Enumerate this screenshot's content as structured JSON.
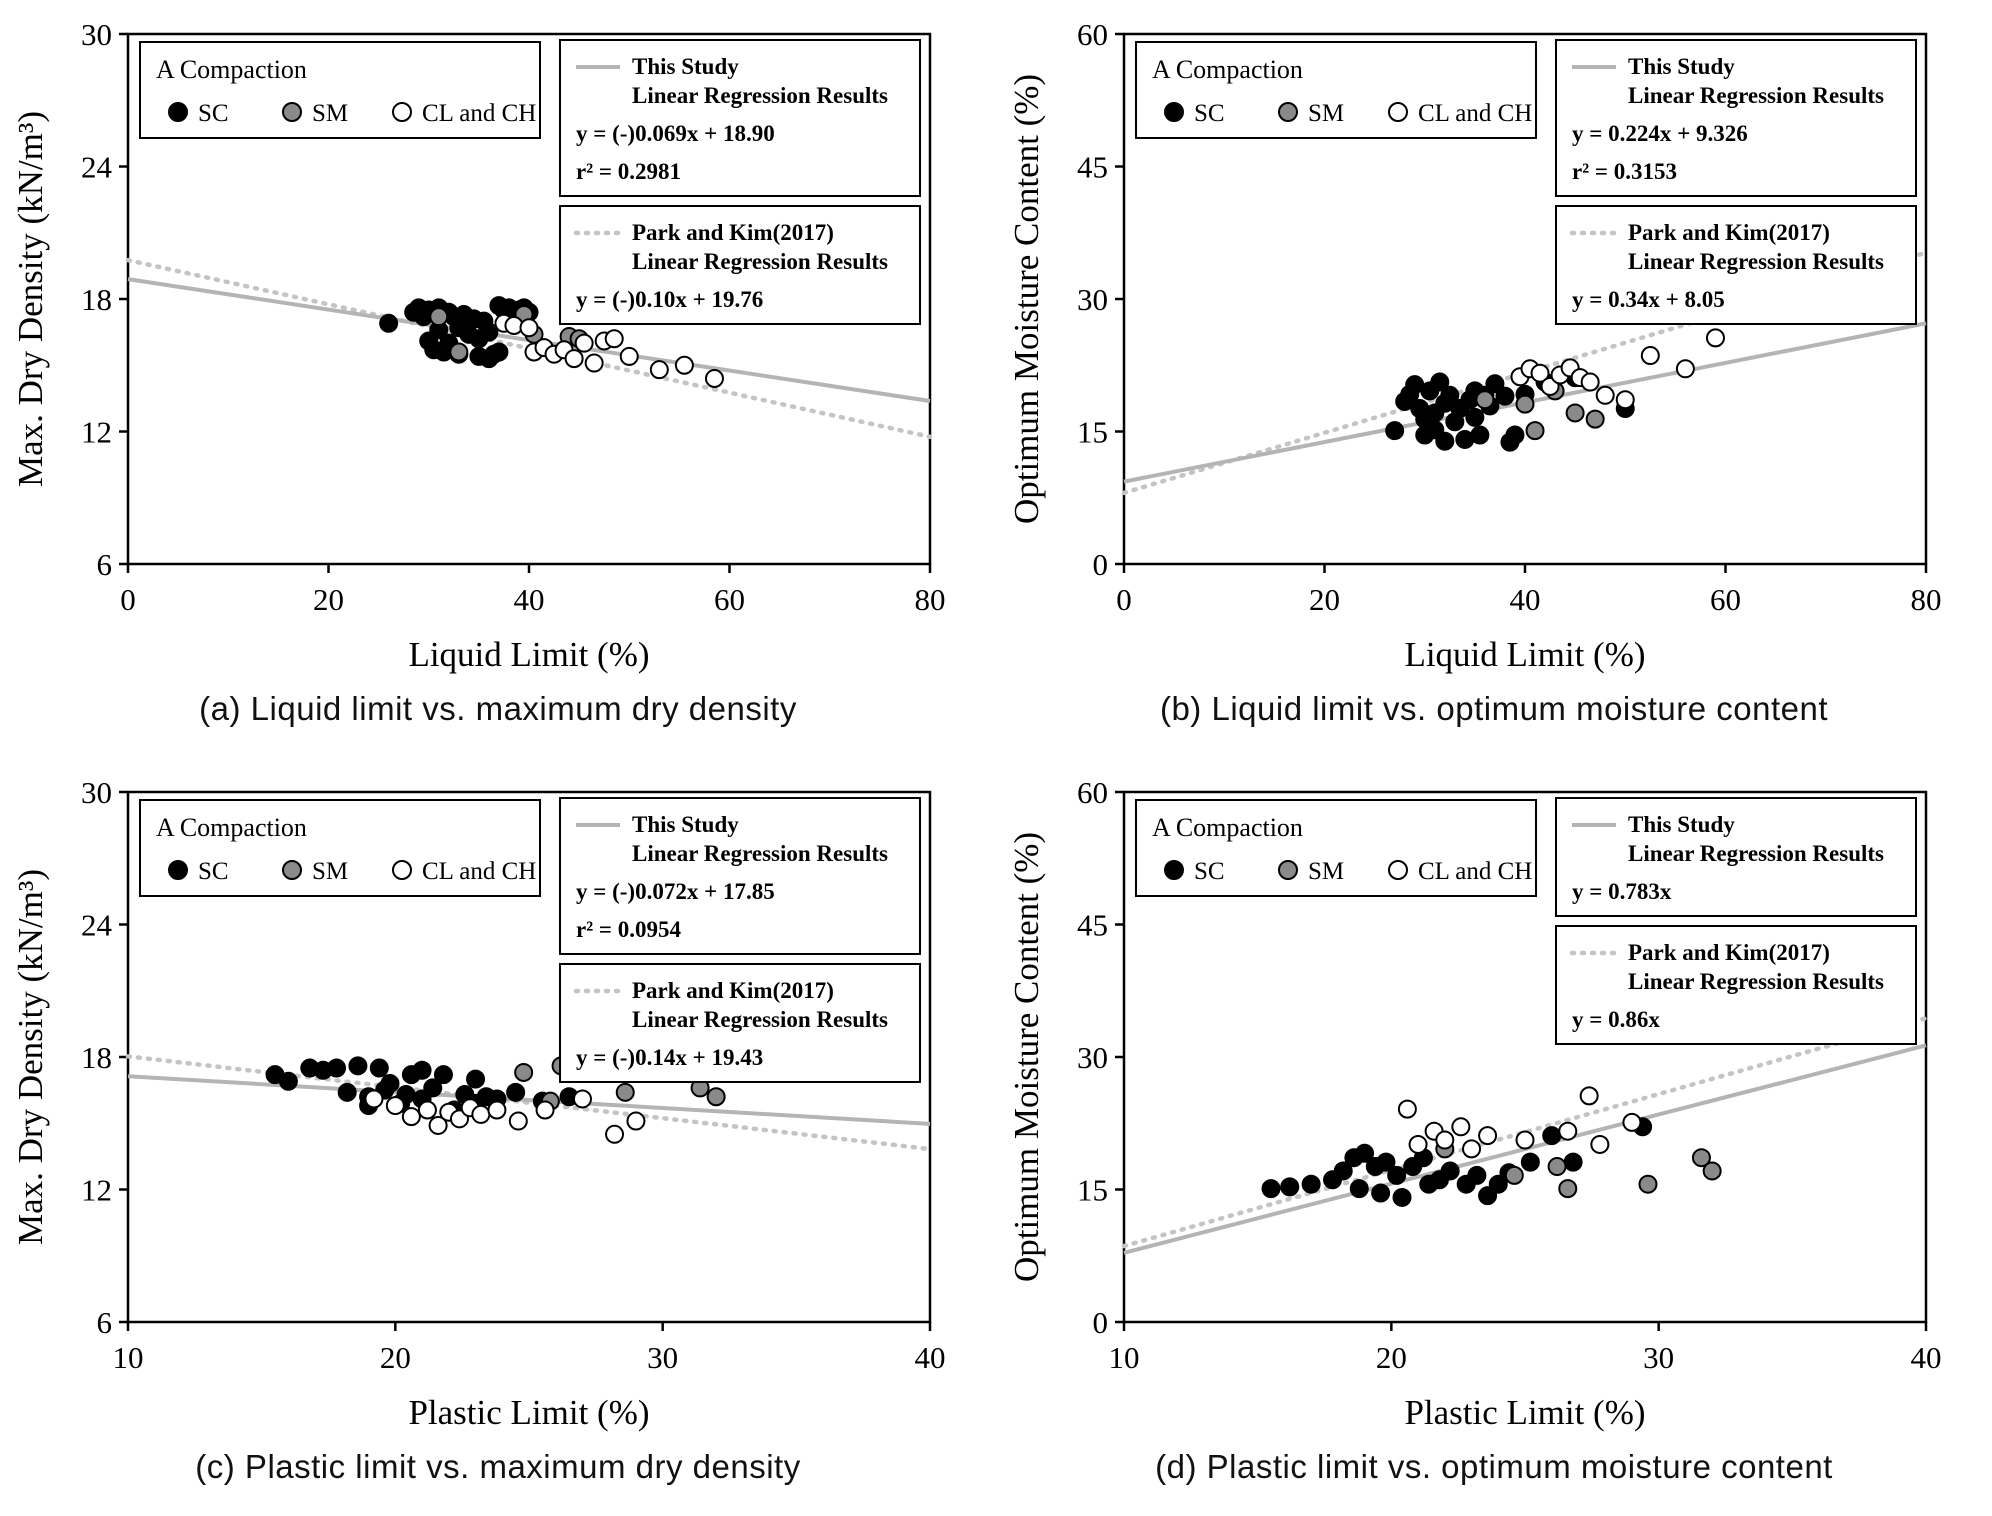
{
  "figure": {
    "legend_title": "A Compaction",
    "series_labels": [
      "SC",
      "SM",
      "CL and CH"
    ],
    "colors": {
      "sc": "#000000",
      "sm": "#8a8a8a",
      "clch": "#ffffff",
      "solid_line": "#b4b4b4",
      "dotted_line": "#c4c4c4",
      "axis": "#000000"
    },
    "this_study_title": "This Study",
    "regression_subtitle": "Linear Regression Results",
    "park_title": "Park and Kim(2017)"
  },
  "chart_data": [
    {
      "id": "a",
      "type": "scatter",
      "caption": "(a) Liquid limit vs. maximum dry density",
      "xlabel": "Liquid Limit (%)",
      "ylabel": "Max. Dry Density (kN/m³)",
      "xlim": [
        0,
        80
      ],
      "ylim": [
        6,
        30
      ],
      "xticks": [
        0,
        20,
        40,
        60,
        80
      ],
      "yticks": [
        6,
        12,
        18,
        24,
        30
      ],
      "regression": {
        "this_study": {
          "equation": "y = (-)0.069x + 18.90",
          "r2": "r² = 0.2981",
          "slope": -0.069,
          "intercept": 18.9
        },
        "park_kim": {
          "equation": "y = (-)0.10x + 19.76",
          "slope": -0.1,
          "intercept": 19.76
        }
      },
      "series": [
        {
          "name": "SC",
          "marker": "sc",
          "points": [
            [
              26,
              16.9
            ],
            [
              28.5,
              17.4
            ],
            [
              29,
              17.6
            ],
            [
              29.5,
              17.2
            ],
            [
              30,
              17.5
            ],
            [
              30,
              16.1
            ],
            [
              30.5,
              15.7
            ],
            [
              31,
              17.6
            ],
            [
              31,
              16.6
            ],
            [
              31.5,
              15.6
            ],
            [
              32,
              17.4
            ],
            [
              32,
              16.0
            ],
            [
              32.5,
              17.2
            ],
            [
              33,
              16.7
            ],
            [
              33,
              15.5
            ],
            [
              33.5,
              17.3
            ],
            [
              34,
              16.4
            ],
            [
              34.5,
              17.1
            ],
            [
              35,
              16.2
            ],
            [
              35,
              15.4
            ],
            [
              35.5,
              17.0
            ],
            [
              36,
              16.5
            ],
            [
              36.5,
              15.5
            ],
            [
              37,
              17.7
            ],
            [
              37.5,
              17.5
            ],
            [
              38,
              17.6
            ],
            [
              38.5,
              17.3
            ],
            [
              39,
              17.5
            ],
            [
              36,
              15.3
            ],
            [
              37,
              15.6
            ],
            [
              39.5,
              17.6
            ],
            [
              40,
              17.4
            ]
          ]
        },
        {
          "name": "SM",
          "marker": "sm",
          "points": [
            [
              31,
              17.2
            ],
            [
              33,
              15.6
            ],
            [
              39.5,
              17.3
            ],
            [
              40.5,
              16.4
            ],
            [
              44,
              16.3
            ],
            [
              45,
              16.2
            ]
          ]
        },
        {
          "name": "CL and CH",
          "marker": "clch",
          "points": [
            [
              37.5,
              16.9
            ],
            [
              38.5,
              16.8
            ],
            [
              40,
              16.7
            ],
            [
              40.5,
              15.6
            ],
            [
              41.5,
              15.8
            ],
            [
              42.5,
              15.5
            ],
            [
              43.5,
              15.7
            ],
            [
              44.5,
              15.3
            ],
            [
              45.5,
              16.0
            ],
            [
              46.5,
              15.1
            ],
            [
              47.5,
              16.1
            ],
            [
              48.5,
              16.2
            ],
            [
              50,
              15.4
            ],
            [
              53,
              14.8
            ],
            [
              55.5,
              15.0
            ],
            [
              58.5,
              14.4
            ]
          ]
        }
      ]
    },
    {
      "id": "b",
      "type": "scatter",
      "caption": "(b) Liquid limit vs. optimum moisture content",
      "xlabel": "Liquid Limit (%)",
      "ylabel": "Optimum Moisture Content (%)",
      "xlim": [
        0,
        80
      ],
      "ylim": [
        0,
        60
      ],
      "xticks": [
        0,
        20,
        40,
        60,
        80
      ],
      "yticks": [
        0,
        15,
        30,
        45,
        60
      ],
      "regression": {
        "this_study": {
          "equation": "y = 0.224x + 9.326",
          "r2": "r² = 0.3153",
          "slope": 0.224,
          "intercept": 9.326
        },
        "park_kim": {
          "equation": "y = 0.34x + 8.05",
          "slope": 0.34,
          "intercept": 8.05
        }
      },
      "series": [
        {
          "name": "SC",
          "marker": "sc",
          "points": [
            [
              27,
              15.1
            ],
            [
              28,
              18.4
            ],
            [
              28.5,
              19.2
            ],
            [
              29,
              20.3
            ],
            [
              29.5,
              17.6
            ],
            [
              30,
              16.4
            ],
            [
              30,
              14.6
            ],
            [
              30.5,
              19.6
            ],
            [
              31,
              17.1
            ],
            [
              31,
              15.2
            ],
            [
              31.5,
              20.6
            ],
            [
              32,
              18.2
            ],
            [
              32,
              13.9
            ],
            [
              32.5,
              19.1
            ],
            [
              33,
              16.1
            ],
            [
              33.5,
              17.6
            ],
            [
              34,
              14.1
            ],
            [
              34.5,
              18.6
            ],
            [
              35,
              19.6
            ],
            [
              35,
              16.6
            ],
            [
              35.5,
              14.6
            ],
            [
              36,
              19.1
            ],
            [
              36.5,
              17.9
            ],
            [
              37,
              20.4
            ],
            [
              38,
              19.0
            ],
            [
              38.5,
              13.8
            ],
            [
              39,
              14.6
            ],
            [
              40,
              19.2
            ],
            [
              42,
              20.6
            ],
            [
              45,
              21.1
            ],
            [
              50,
              17.6
            ]
          ]
        },
        {
          "name": "SM",
          "marker": "sm",
          "points": [
            [
              36,
              18.6
            ],
            [
              40,
              18.1
            ],
            [
              41,
              15.1
            ],
            [
              43,
              19.6
            ],
            [
              45,
              17.1
            ],
            [
              47,
              16.4
            ]
          ]
        },
        {
          "name": "CL and CH",
          "marker": "clch",
          "points": [
            [
              39.5,
              21.2
            ],
            [
              40.5,
              22.1
            ],
            [
              41.5,
              21.6
            ],
            [
              42.5,
              20.1
            ],
            [
              43.5,
              21.4
            ],
            [
              44.5,
              22.2
            ],
            [
              45.5,
              21.1
            ],
            [
              46.5,
              20.6
            ],
            [
              48,
              19.1
            ],
            [
              50,
              18.6
            ],
            [
              52.5,
              23.6
            ],
            [
              56,
              22.1
            ],
            [
              59,
              25.6
            ]
          ]
        }
      ]
    },
    {
      "id": "c",
      "type": "scatter",
      "caption": "(c) Plastic limit vs. maximum dry density",
      "xlabel": "Plastic Limit (%)",
      "ylabel": "Max. Dry Density (kN/m³)",
      "xlim": [
        10,
        40
      ],
      "ylim": [
        6,
        30
      ],
      "xticks": [
        10,
        20,
        30,
        40
      ],
      "yticks": [
        6,
        12,
        18,
        24,
        30
      ],
      "regression": {
        "this_study": {
          "equation": "y = (-)0.072x + 17.85",
          "r2": "r² = 0.0954",
          "slope": -0.072,
          "intercept": 17.85
        },
        "park_kim": {
          "equation": "y = (-)0.14x + 19.43",
          "slope": -0.14,
          "intercept": 19.43
        }
      },
      "series": [
        {
          "name": "SC",
          "marker": "sc",
          "points": [
            [
              15.5,
              17.2
            ],
            [
              16,
              16.9
            ],
            [
              16.8,
              17.5
            ],
            [
              17.3,
              17.4
            ],
            [
              17.8,
              17.5
            ],
            [
              18.2,
              16.4
            ],
            [
              18.6,
              17.6
            ],
            [
              19,
              16.2
            ],
            [
              19,
              15.8
            ],
            [
              19.4,
              17.5
            ],
            [
              19.8,
              16.8
            ],
            [
              20.2,
              15.9
            ],
            [
              20.6,
              17.2
            ],
            [
              21,
              17.4
            ],
            [
              21,
              16.1
            ],
            [
              21.4,
              16.6
            ],
            [
              21.8,
              17.2
            ],
            [
              22.2,
              15.6
            ],
            [
              22.6,
              16.3
            ],
            [
              23,
              17.0
            ],
            [
              23,
              15.9
            ],
            [
              23.4,
              16.2
            ],
            [
              23.8,
              16.1
            ],
            [
              24.5,
              16.4
            ],
            [
              25.5,
              16.0
            ],
            [
              26.5,
              16.2
            ],
            [
              19.6,
              16.5
            ],
            [
              20.4,
              16.3
            ]
          ]
        },
        {
          "name": "SM",
          "marker": "sm",
          "points": [
            [
              24.8,
              17.3
            ],
            [
              26.2,
              17.6
            ],
            [
              28.6,
              16.4
            ],
            [
              29.4,
              17.6
            ],
            [
              31.4,
              16.6
            ],
            [
              32,
              16.2
            ],
            [
              25.8,
              16.0
            ]
          ]
        },
        {
          "name": "CL and CH",
          "marker": "clch",
          "points": [
            [
              19.2,
              16.1
            ],
            [
              20,
              15.8
            ],
            [
              20.6,
              15.3
            ],
            [
              21.2,
              15.6
            ],
            [
              21.6,
              14.9
            ],
            [
              22,
              15.5
            ],
            [
              22.4,
              15.2
            ],
            [
              22.8,
              15.7
            ],
            [
              23.2,
              15.4
            ],
            [
              23.8,
              15.6
            ],
            [
              24.6,
              15.1
            ],
            [
              25.6,
              15.6
            ],
            [
              27,
              16.1
            ],
            [
              28.2,
              14.5
            ],
            [
              29,
              15.1
            ]
          ]
        }
      ]
    },
    {
      "id": "d",
      "type": "scatter",
      "caption": "(d) Plastic limit vs. optimum moisture content",
      "xlabel": "Plastic Limit (%)",
      "ylabel": "Optimum Moisture Content (%)",
      "xlim": [
        10,
        40
      ],
      "ylim": [
        0,
        60
      ],
      "xticks": [
        10,
        20,
        30,
        40
      ],
      "yticks": [
        0,
        15,
        30,
        45,
        60
      ],
      "regression": {
        "this_study": {
          "equation": "y = 0.783x",
          "slope": 0.783,
          "intercept": 0
        },
        "park_kim": {
          "equation": "y = 0.86x",
          "slope": 0.86,
          "intercept": 0
        }
      },
      "series": [
        {
          "name": "SC",
          "marker": "sc",
          "points": [
            [
              15.5,
              15.1
            ],
            [
              16.2,
              15.3
            ],
            [
              17,
              15.6
            ],
            [
              17.8,
              16.1
            ],
            [
              18.2,
              17.1
            ],
            [
              18.6,
              18.6
            ],
            [
              18.8,
              15.1
            ],
            [
              19,
              19.1
            ],
            [
              19.4,
              17.6
            ],
            [
              19.6,
              14.6
            ],
            [
              19.8,
              18.1
            ],
            [
              20.2,
              16.6
            ],
            [
              20.4,
              14.1
            ],
            [
              20.8,
              17.6
            ],
            [
              21.2,
              18.6
            ],
            [
              21.4,
              15.6
            ],
            [
              21.8,
              16.1
            ],
            [
              22.2,
              17.1
            ],
            [
              22.8,
              15.6
            ],
            [
              23.2,
              16.6
            ],
            [
              23.6,
              14.3
            ],
            [
              24,
              15.6
            ],
            [
              24.4,
              16.9
            ],
            [
              25.2,
              18.1
            ],
            [
              26,
              21.1
            ],
            [
              26.8,
              18.1
            ],
            [
              29.4,
              22.1
            ]
          ]
        },
        {
          "name": "SM",
          "marker": "sm",
          "points": [
            [
              22,
              19.6
            ],
            [
              24.6,
              16.6
            ],
            [
              26.2,
              17.6
            ],
            [
              26.6,
              15.1
            ],
            [
              29.6,
              15.6
            ],
            [
              31.6,
              18.6
            ],
            [
              32,
              17.1
            ]
          ]
        },
        {
          "name": "CL and CH",
          "marker": "clch",
          "points": [
            [
              20.6,
              24.1
            ],
            [
              21,
              20.1
            ],
            [
              21.6,
              21.6
            ],
            [
              22,
              20.6
            ],
            [
              22.6,
              22.1
            ],
            [
              23,
              19.6
            ],
            [
              23.6,
              21.1
            ],
            [
              25,
              20.6
            ],
            [
              26.6,
              21.6
            ],
            [
              27.4,
              25.6
            ],
            [
              27.8,
              20.1
            ],
            [
              29,
              22.6
            ]
          ]
        }
      ]
    }
  ]
}
